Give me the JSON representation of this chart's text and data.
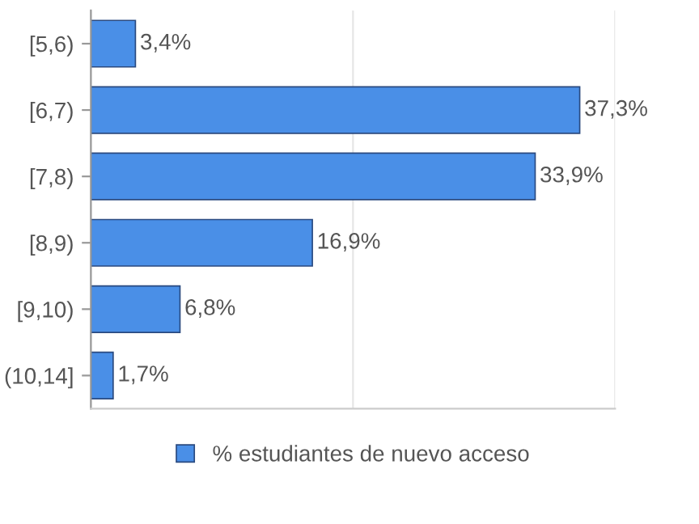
{
  "chart_data": {
    "type": "bar",
    "orientation": "horizontal",
    "categories": [
      "[5,6)",
      "[6,7)",
      "[7,8)",
      "[8,9)",
      "[9,10)",
      "(10,14]"
    ],
    "series": [
      {
        "name": "% estudiantes de nuevo acceso",
        "color": "#4a8fe7",
        "values": [
          3.4,
          37.3,
          33.9,
          16.9,
          6.8,
          1.7
        ],
        "value_labels": [
          "3,4%",
          "37,3%",
          "33,9%",
          "16,9%",
          "6,8%",
          "1,7%"
        ]
      }
    ],
    "xlim": [
      0,
      40
    ],
    "xticks": [
      {
        "value": 0,
        "label": null
      },
      {
        "value": 20,
        "label": null
      },
      {
        "value": 40,
        "label": null
      }
    ],
    "tick_labels": "y",
    "grid": "x",
    "legend": "bottom"
  }
}
